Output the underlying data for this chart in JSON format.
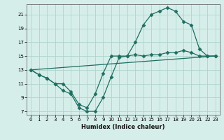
{
  "xlabel": "Humidex (Indice chaleur)",
  "xlim": [
    -0.5,
    23.5
  ],
  "ylim": [
    6.5,
    22.5
  ],
  "yticks": [
    7,
    9,
    11,
    13,
    15,
    17,
    19,
    21
  ],
  "xticks": [
    0,
    1,
    2,
    3,
    4,
    5,
    6,
    7,
    8,
    9,
    10,
    11,
    12,
    13,
    14,
    15,
    16,
    17,
    18,
    19,
    20,
    21,
    22,
    23
  ],
  "background_color": "#d6eeea",
  "grid_color": "#aed4cc",
  "line_color": "#1e6e62",
  "line1_x": [
    0,
    1,
    2,
    3,
    4,
    5,
    6,
    7,
    8,
    9,
    10,
    11,
    12,
    13,
    14,
    15,
    16,
    17,
    18,
    19,
    20,
    21,
    22,
    23
  ],
  "line1_y": [
    13,
    12.3,
    11.8,
    11,
    11,
    9.8,
    8,
    7.5,
    9.5,
    12.5,
    15,
    15,
    15,
    17,
    19.5,
    21,
    21.5,
    22,
    21.5,
    20,
    19.5,
    16,
    15,
    15
  ],
  "line2_x": [
    0,
    1,
    2,
    3,
    4,
    5,
    6,
    7,
    8,
    9,
    10,
    11,
    12,
    13,
    14,
    15,
    16,
    17,
    18,
    19,
    20,
    21,
    22,
    23
  ],
  "line2_y": [
    13,
    12.3,
    11.8,
    11,
    10,
    9.5,
    7.5,
    7,
    7,
    9,
    12,
    14.8,
    15,
    15.2,
    15,
    15.2,
    15.2,
    15.5,
    15.5,
    15.8,
    15.5,
    15,
    15,
    15
  ],
  "line3_x": [
    0,
    23
  ],
  "line3_y": [
    13,
    15
  ]
}
